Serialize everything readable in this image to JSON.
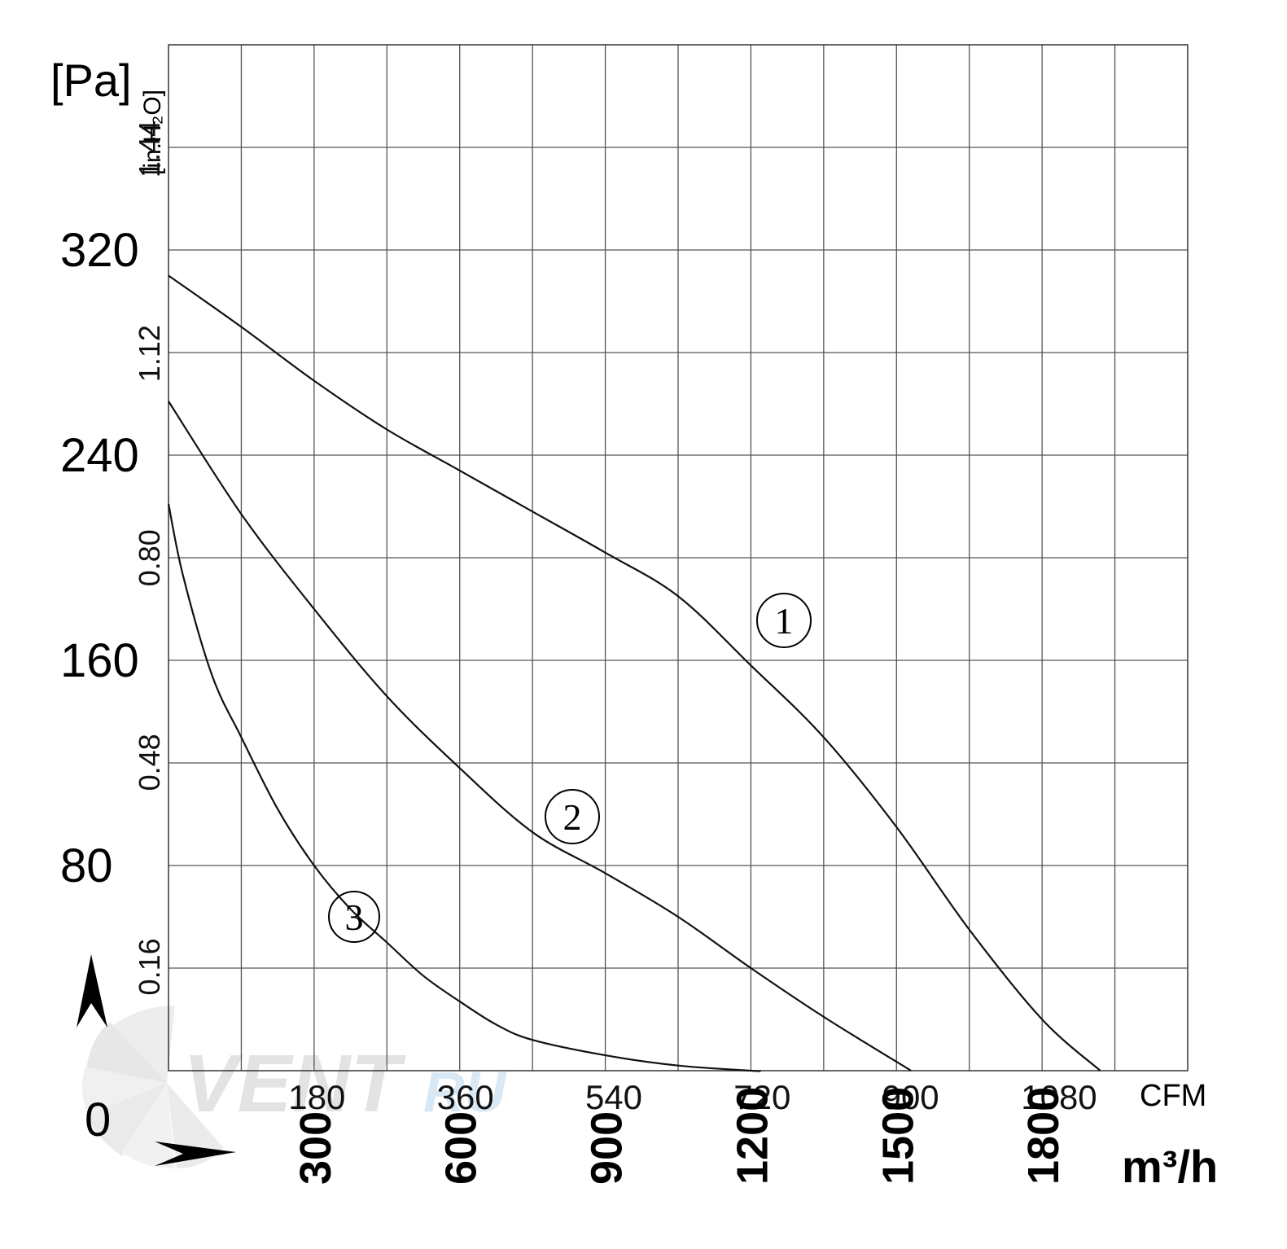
{
  "chart_data": {
    "type": "line",
    "y_unit_primary": "[Pa]",
    "y_unit_secondary": "[in.H₂O]",
    "y_ticks_pa": [
      "0",
      "80",
      "160",
      "240",
      "320"
    ],
    "y_ticks_in": [
      "0.16",
      "0.48",
      "0.80",
      "1.12",
      "1.44"
    ],
    "x_unit_cfm": "CFM",
    "x_unit_m3h": "m³/h",
    "x_ticks_cfm": [
      "180",
      "360",
      "540",
      "720",
      "900",
      "1080"
    ],
    "x_ticks_m3h": [
      "300",
      "600",
      "900",
      "1200",
      "1500",
      "1800"
    ],
    "xlim_m3h": [
      0,
      2100
    ],
    "ylim_pa": [
      0,
      400
    ],
    "grid": true,
    "series": [
      {
        "name": "1",
        "x": [
          0,
          150,
          300,
          450,
          600,
          750,
          900,
          1050,
          1200,
          1350,
          1500,
          1650,
          1800,
          1920
        ],
        "y": [
          310,
          290,
          269,
          250,
          234,
          218,
          202,
          185,
          158,
          130,
          95,
          55,
          20,
          0
        ]
      },
      {
        "name": "2",
        "x": [
          0,
          150,
          300,
          450,
          600,
          750,
          900,
          1050,
          1200,
          1350,
          1530
        ],
        "y": [
          261,
          217,
          180,
          146,
          118,
          93,
          77,
          60,
          40,
          21,
          0
        ]
      },
      {
        "name": "3",
        "x": [
          0,
          30,
          90,
          150,
          225,
          300,
          375,
          450,
          525,
          600,
          675,
          750,
          900,
          1050,
          1200,
          1220
        ],
        "y": [
          221,
          193,
          154,
          130,
          102,
          80,
          63,
          50,
          37,
          27,
          18,
          12,
          6,
          2,
          0,
          0
        ]
      }
    ],
    "legend": "circled numbers placed next to each curve"
  },
  "watermark": {
    "text": "VENT",
    "suffix": "RU"
  }
}
